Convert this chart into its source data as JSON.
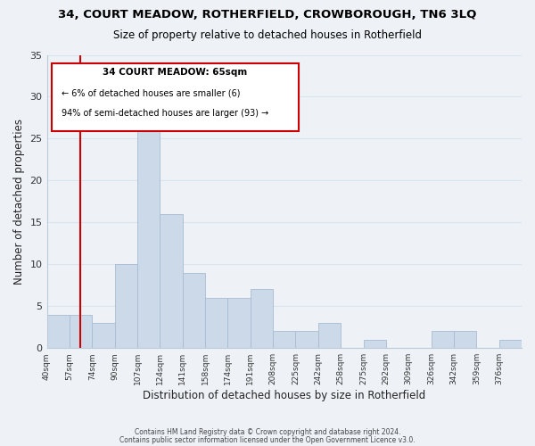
{
  "title": "34, COURT MEADOW, ROTHERFIELD, CROWBOROUGH, TN6 3LQ",
  "subtitle": "Size of property relative to detached houses in Rotherfield",
  "xlabel": "Distribution of detached houses by size in Rotherfield",
  "ylabel": "Number of detached properties",
  "bin_labels": [
    "40sqm",
    "57sqm",
    "74sqm",
    "90sqm",
    "107sqm",
    "124sqm",
    "141sqm",
    "158sqm",
    "174sqm",
    "191sqm",
    "208sqm",
    "225sqm",
    "242sqm",
    "258sqm",
    "275sqm",
    "292sqm",
    "309sqm",
    "326sqm",
    "342sqm",
    "359sqm",
    "376sqm"
  ],
  "bar_values": [
    4,
    4,
    3,
    10,
    26,
    16,
    9,
    6,
    6,
    7,
    2,
    2,
    3,
    0,
    1,
    0,
    0,
    2,
    2,
    0,
    1
  ],
  "bar_color": "#ccd9e8",
  "bar_edge_color": "#a8bcd0",
  "grid_color": "#d8e4ee",
  "background_color": "#eef2f7",
  "annotation_title": "34 COURT MEADOW: 65sqm",
  "annotation_line1": "← 6% of detached houses are smaller (6)",
  "annotation_line2": "94% of semi-detached houses are larger (93) →",
  "annotation_box_color": "#ffffff",
  "annotation_border_color": "#cc0000",
  "marker_line_color": "#cc0000",
  "ylim": [
    0,
    35
  ],
  "yticks": [
    0,
    5,
    10,
    15,
    20,
    25,
    30,
    35
  ],
  "footer1": "Contains HM Land Registry data © Crown copyright and database right 2024.",
  "footer2": "Contains public sector information licensed under the Open Government Licence v3.0."
}
